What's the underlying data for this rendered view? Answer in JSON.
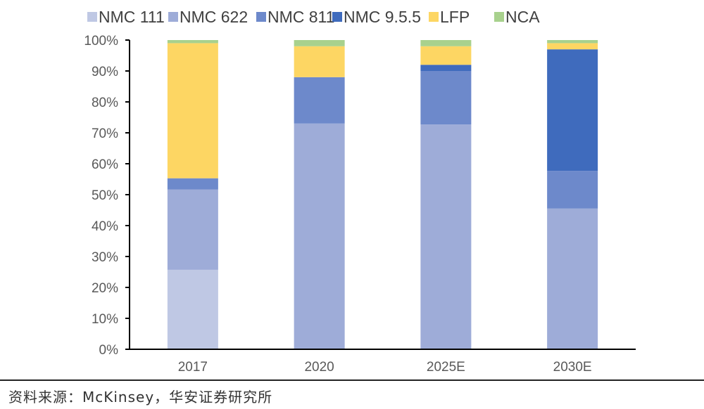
{
  "chart_data": {
    "type": "bar",
    "stacked": true,
    "title": "",
    "xlabel": "",
    "ylabel": "",
    "ylim": [
      0,
      100
    ],
    "yticks": [
      "0%",
      "10%",
      "20%",
      "30%",
      "40%",
      "50%",
      "60%",
      "70%",
      "80%",
      "90%",
      "100%"
    ],
    "categories": [
      "2017",
      "2020",
      "2025E",
      "2030E"
    ],
    "legend_position": "top",
    "grid": false,
    "series": [
      {
        "name": "NMC 111",
        "color": "#bfc8e4",
        "values": [
          25.7,
          0,
          0,
          0
        ]
      },
      {
        "name": "NMC 622",
        "color": "#9eacd8",
        "values": [
          26.0,
          73.0,
          72.7,
          45.5
        ]
      },
      {
        "name": "NMC 811",
        "color": "#6d89cb",
        "values": [
          3.6,
          15.0,
          17.3,
          12.2
        ]
      },
      {
        "name": "NMC 9.5.5",
        "color": "#3f6bbd",
        "values": [
          0,
          0,
          2.0,
          39.3
        ]
      },
      {
        "name": "LFP",
        "color": "#fdd663",
        "values": [
          43.7,
          10.0,
          6.0,
          2.0
        ]
      },
      {
        "name": "NCA",
        "color": "#a8d18d",
        "values": [
          1.0,
          2.0,
          2.0,
          1.0
        ]
      }
    ]
  },
  "source_note": "资料来源：McKinsey，华安证券研究所"
}
